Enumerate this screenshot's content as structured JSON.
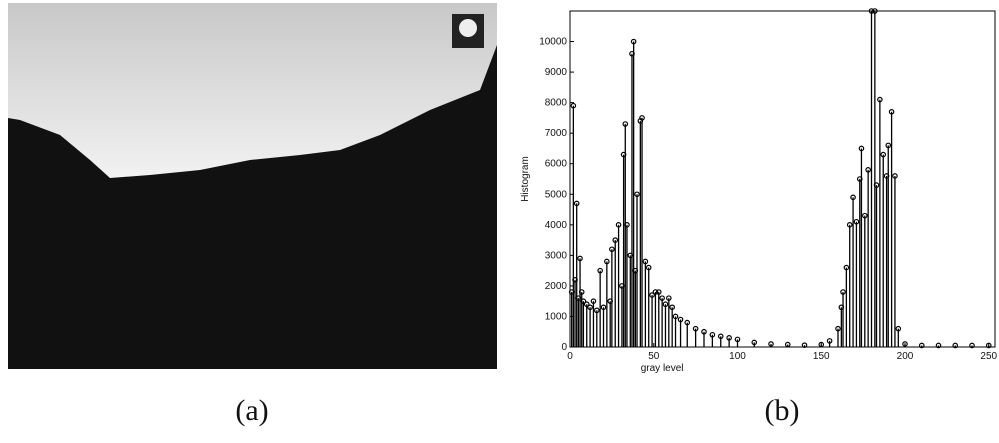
{
  "captions": [
    "(a)",
    "(b)"
  ],
  "chart_data": {
    "type": "stem",
    "xlabel": "gray level",
    "ylabel": "Histogram",
    "color": "#000000",
    "x": [
      1,
      2,
      3,
      4,
      5,
      6,
      7,
      8,
      10,
      12,
      14,
      16,
      18,
      20,
      22,
      24,
      25,
      27,
      29,
      31,
      32,
      33,
      34,
      36,
      37,
      38,
      39,
      40,
      42,
      43,
      45,
      47,
      49,
      51,
      53,
      55,
      57,
      59,
      61,
      63,
      66,
      70,
      75,
      80,
      85,
      90,
      95,
      100,
      110,
      120,
      130,
      140,
      150,
      155,
      160,
      162,
      163,
      165,
      167,
      169,
      171,
      173,
      174,
      176,
      178,
      180,
      182,
      183,
      185,
      187,
      189,
      190,
      192,
      194,
      196,
      200,
      210,
      220,
      230,
      240,
      250
    ],
    "values": [
      1800,
      7900,
      2200,
      4700,
      1600,
      2900,
      1800,
      1500,
      1400,
      1300,
      1500,
      1200,
      2500,
      1300,
      2800,
      1500,
      3200,
      3500,
      4000,
      2000,
      6300,
      7300,
      4000,
      3000,
      9600,
      10000,
      2500,
      5000,
      7400,
      7500,
      2800,
      2600,
      1700,
      1800,
      1800,
      1600,
      1400,
      1600,
      1300,
      1000,
      900,
      800,
      600,
      500,
      400,
      350,
      300,
      250,
      150,
      100,
      80,
      60,
      80,
      200,
      600,
      1300,
      1800,
      2600,
      4000,
      4900,
      4100,
      5500,
      6500,
      4300,
      5800,
      11000,
      11000,
      5300,
      8100,
      6300,
      5600,
      6600,
      7700,
      5600,
      600,
      100,
      50,
      50,
      50,
      50,
      50
    ],
    "xlim": [
      0,
      256
    ],
    "xticks": [
      0,
      50,
      100,
      150,
      200,
      250
    ],
    "ylim": [
      0,
      11000
    ],
    "yticks": [
      0,
      1000,
      2000,
      3000,
      4000,
      5000,
      6000,
      7000,
      8000,
      9000,
      10000
    ]
  }
}
